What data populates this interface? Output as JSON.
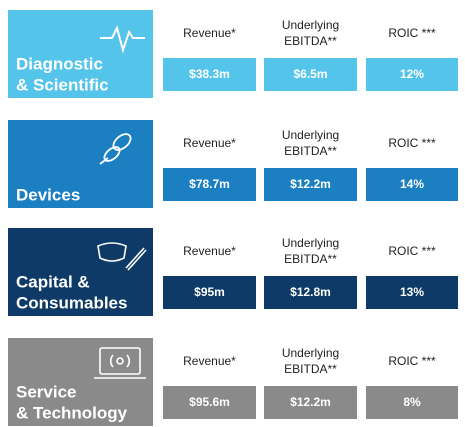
{
  "segments": [
    {
      "name": [
        "Diagnostic",
        "& Scientific"
      ],
      "color": "#55c4ea",
      "metrics": [
        {
          "label": [
            "Revenue*"
          ],
          "value": "$38.3m"
        },
        {
          "label": [
            "Underlying",
            "EBITDA**"
          ],
          "value": "$6.5m"
        },
        {
          "label": [
            "ROIC ***"
          ],
          "value": "12%"
        }
      ]
    },
    {
      "name": [
        "Devices"
      ],
      "color": "#1b7fc2",
      "metrics": [
        {
          "label": [
            "Revenue*"
          ],
          "value": "$78.7m"
        },
        {
          "label": [
            "Underlying",
            "EBITDA**"
          ],
          "value": "$12.2m"
        },
        {
          "label": [
            "ROIC ***"
          ],
          "value": "14%"
        }
      ]
    },
    {
      "name": [
        "Capital &",
        "Consumables"
      ],
      "color": "#0d3a66",
      "metrics": [
        {
          "label": [
            "Revenue*"
          ],
          "value": "$95m"
        },
        {
          "label": [
            "Underlying",
            "EBITDA**"
          ],
          "value": "$12.8m"
        },
        {
          "label": [
            "ROIC ***"
          ],
          "value": "13%"
        }
      ]
    },
    {
      "name": [
        "Service",
        "& Technology"
      ],
      "color": "#8a8a8a",
      "metrics": [
        {
          "label": [
            "Revenue*"
          ],
          "value": "$95.6m"
        },
        {
          "label": [
            "Underlying",
            "EBITDA**"
          ],
          "value": "$12.2m"
        },
        {
          "label": [
            "ROIC ***"
          ],
          "value": "8%"
        }
      ]
    }
  ]
}
